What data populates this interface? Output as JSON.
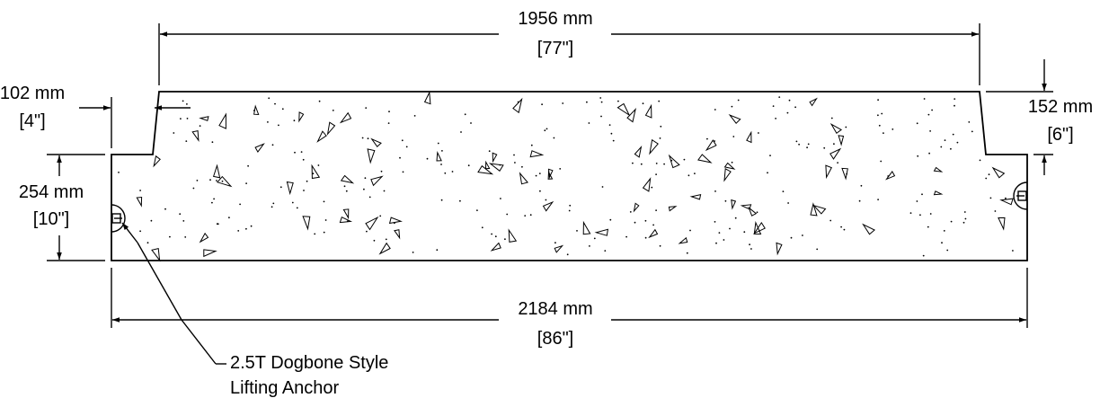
{
  "dimensions": {
    "top_width": {
      "mm": "1956 mm",
      "inch": "[77\"]"
    },
    "bottom_width": {
      "mm": "2184 mm",
      "inch": "[86\"]"
    },
    "left_step": {
      "mm": "102 mm",
      "inch": "[4\"]"
    },
    "right_step": {
      "mm": "152 mm",
      "inch": "[6\"]"
    },
    "height": {
      "mm": "254 mm",
      "inch": "[10\"]"
    }
  },
  "callout": {
    "line1": "2.5T Dogbone Style",
    "line2": "Lifting Anchor"
  }
}
